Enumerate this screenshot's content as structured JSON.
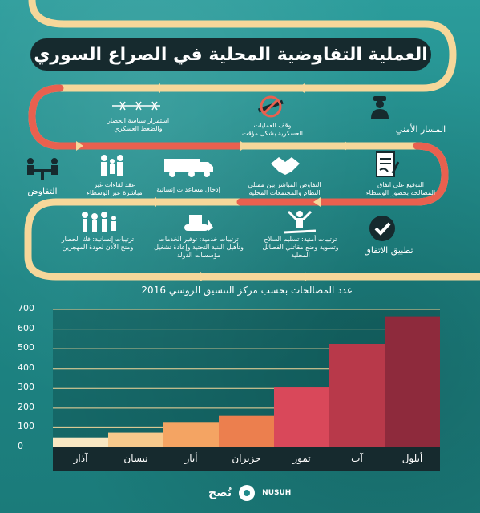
{
  "title": "العملية التفاوضية المحلية في الصراع السوري",
  "steps": {
    "security_track": "المسار الأمني",
    "ceasefire": "وقف العمليات العسكرية بشكل مؤقت",
    "siege": "استمرار سياسة الحصار والضغط العسكري",
    "negotiation": "التفاوض",
    "indirect_meetings": "عقد لقاءات غير مباشرة عبر الوسطاء",
    "humanitarian_aid": "إدخال مساعدات إنسانية",
    "direct_negotiation": "التفاوض المباشر بين ممثلي النظام والمجتمعات المحلية",
    "signing": "التوقيع على اتفاق المصالحة بحضور الوسطاء",
    "implementation": "تطبيق الاتفاق",
    "security_arrangements": "ترتيبات أمنية: تسليم السلاح وتسوية وضع مقاتلي الفصائل المحلية",
    "service_arrangements": "ترتيبات خدمية: توفير الخدمات وتأهيل البنية التحتية وإعادة تشغيل مؤسسات الدولة",
    "humanitarian_arrangements": "ترتيبات إنسانية: فك الحصار ومنح الأذن لعودة المهجرين"
  },
  "colors": {
    "background": "#1f8a8a",
    "banner": "#162a2e",
    "road": "#f6d79a",
    "bars": [
      "#f8e7c2",
      "#f7c98c",
      "#f4a463",
      "#ec7f4e",
      "#d9485a",
      "#b8394a",
      "#8e2a3c"
    ]
  },
  "chart_data": {
    "type": "bar",
    "title": "عدد المصالحات بحسب مركز التنسيق الروسي 2016",
    "categories": [
      "آذار",
      "نيسان",
      "أيار",
      "حزيران",
      "تموز",
      "آب",
      "أيلول"
    ],
    "values": [
      50,
      75,
      125,
      160,
      305,
      525,
      665
    ],
    "ylim": [
      0,
      700
    ],
    "yticks": [
      "0",
      "100",
      "200",
      "300",
      "400",
      "500",
      "600",
      "700"
    ],
    "grid": true
  },
  "footer": {
    "logo_ar": "نُصح",
    "logo_en": "NUSUH"
  }
}
